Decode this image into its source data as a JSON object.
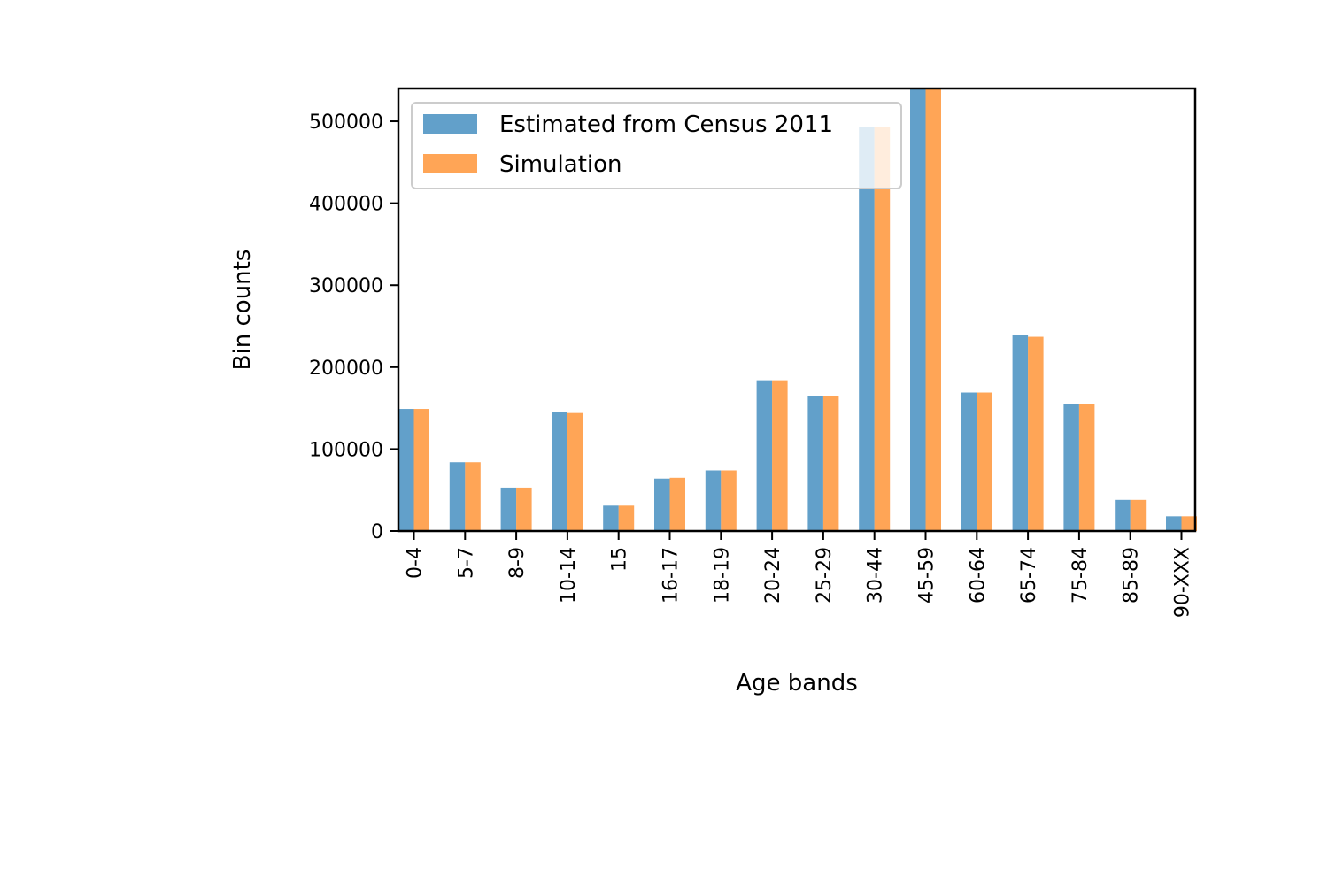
{
  "chart_data": {
    "type": "bar",
    "title": "",
    "xlabel": "Age bands",
    "ylabel": "Bin counts",
    "categories": [
      "0-4",
      "5-7",
      "8-9",
      "10-14",
      "15",
      "16-17",
      "18-19",
      "20-24",
      "25-29",
      "30-44",
      "45-59",
      "60-64",
      "65-74",
      "75-84",
      "85-89",
      "90-XXX"
    ],
    "series": [
      {
        "name": "Estimated from Census 2011",
        "color": "#1f77b4",
        "values": [
          149000,
          84000,
          53000,
          145000,
          31000,
          64000,
          74000,
          184000,
          165000,
          493000,
          540000,
          169000,
          239000,
          155000,
          38000,
          18000
        ]
      },
      {
        "name": "Simulation",
        "color": "#ff7f0e",
        "values": [
          149000,
          84000,
          53000,
          144000,
          31000,
          65000,
          74000,
          184000,
          165000,
          493000,
          540000,
          169000,
          237000,
          155000,
          38000,
          18000
        ]
      }
    ],
    "ylim": [
      0,
      540000
    ],
    "yticks": [
      "0",
      "100000",
      "200000",
      "300000",
      "400000",
      "500000"
    ],
    "grid": false,
    "legend": "top-left"
  }
}
